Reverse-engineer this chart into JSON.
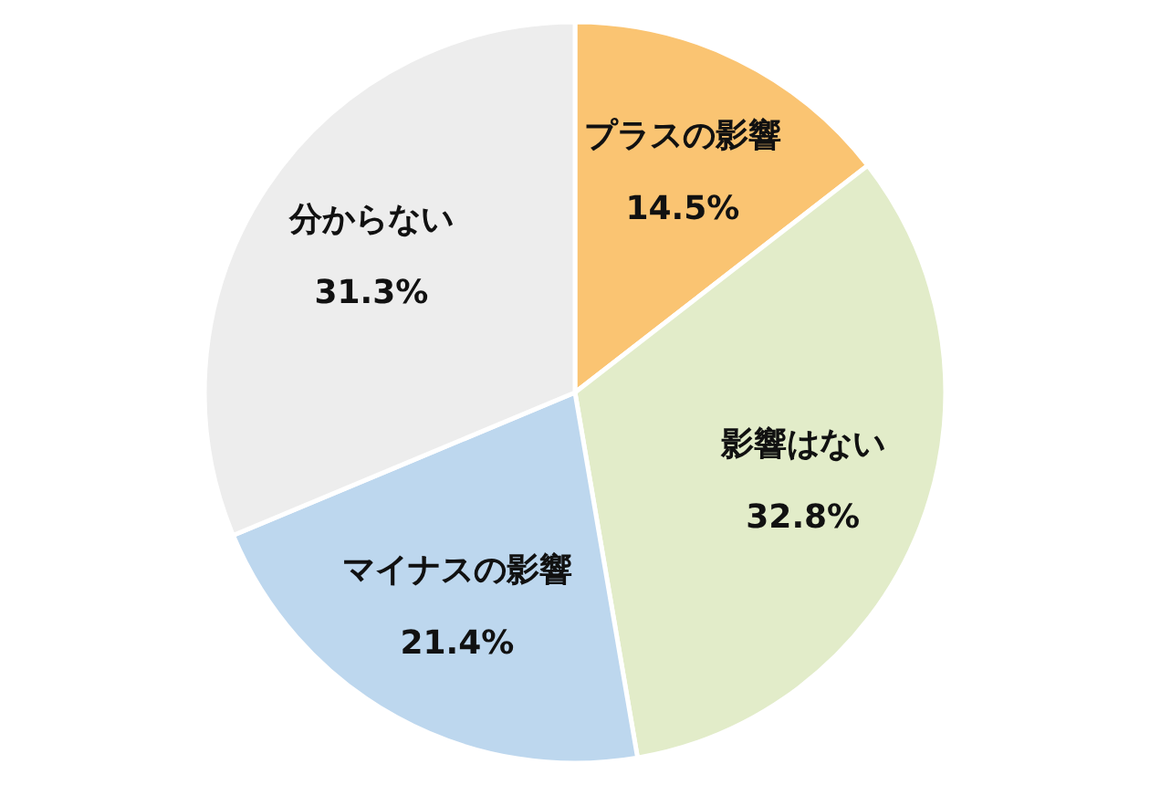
{
  "chart_data": {
    "type": "pie",
    "categories": [
      "プラスの影響",
      "影響はない",
      "マイナスの影響",
      "分からない"
    ],
    "values": [
      14.5,
      32.8,
      21.4,
      31.3
    ],
    "value_labels": [
      "14.5%",
      "32.8%",
      "21.4%",
      "31.3%"
    ],
    "colors": [
      "#fac472",
      "#e2ecc9",
      "#bdd7ee",
      "#ededed"
    ]
  }
}
